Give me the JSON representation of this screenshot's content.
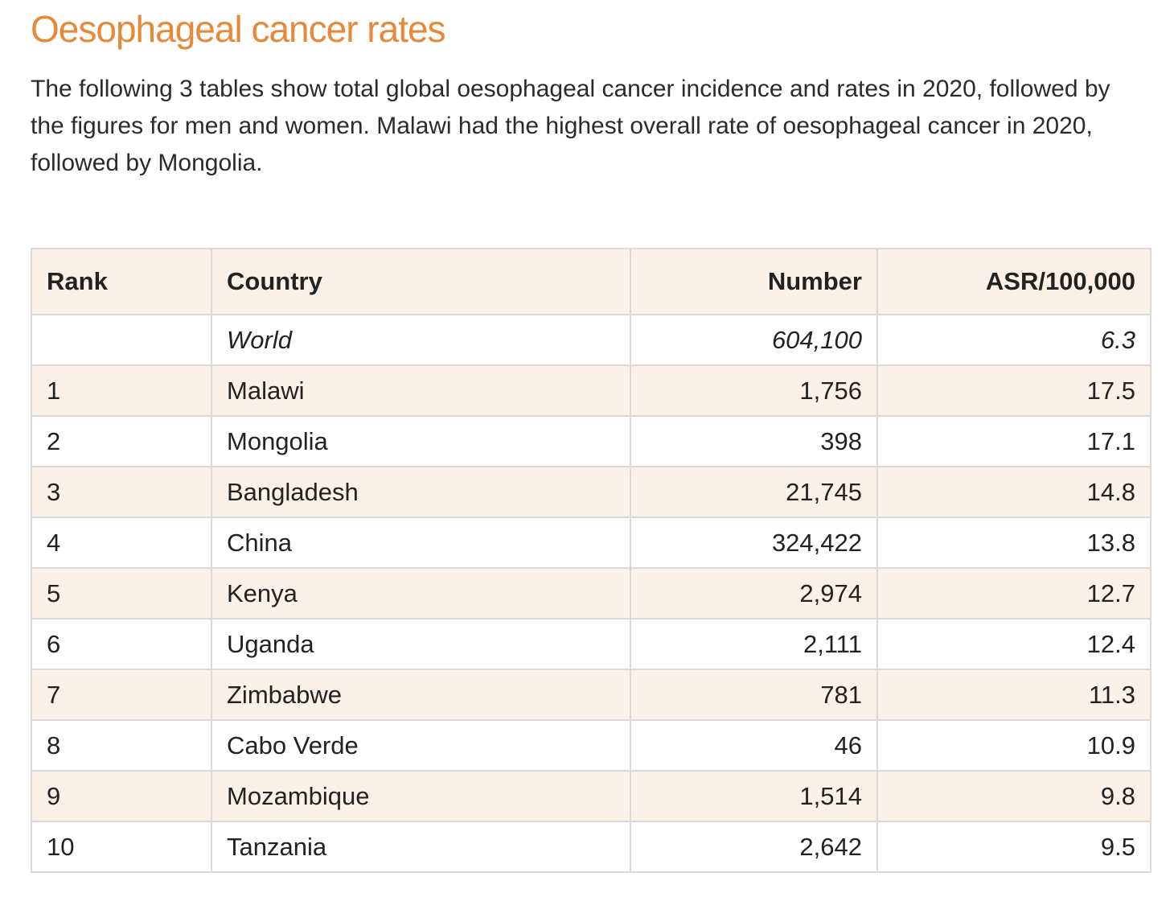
{
  "title": "Oesophageal cancer rates",
  "intro": "The following 3 tables show total global oesophageal cancer incidence and rates in 2020, followed by the figures for men and women. Malawi had the highest overall rate of oesophageal cancer in 2020, followed by Mongolia.",
  "colors": {
    "title": "#e8893a",
    "header_bg": "#fbf1e6",
    "stripe_bg": "#fbf1e6",
    "border": "#d9d9d9"
  },
  "table": {
    "headers": {
      "rank": "Rank",
      "country": "Country",
      "number": "Number",
      "asr": "ASR/100,000"
    },
    "world": {
      "rank": "",
      "country": "World",
      "number": "604,100",
      "asr": "6.3"
    },
    "rows": [
      {
        "rank": "1",
        "country": "Malawi",
        "number": "1,756",
        "asr": "17.5"
      },
      {
        "rank": "2",
        "country": "Mongolia",
        "number": "398",
        "asr": "17.1"
      },
      {
        "rank": "3",
        "country": "Bangladesh",
        "number": "21,745",
        "asr": "14.8"
      },
      {
        "rank": "4",
        "country": "China",
        "number": "324,422",
        "asr": "13.8"
      },
      {
        "rank": "5",
        "country": "Kenya",
        "number": "2,974",
        "asr": "12.7"
      },
      {
        "rank": "6",
        "country": "Uganda",
        "number": "2,111",
        "asr": "12.4"
      },
      {
        "rank": "7",
        "country": "Zimbabwe",
        "number": "781",
        "asr": "11.3"
      },
      {
        "rank": "8",
        "country": "Cabo Verde",
        "number": "46",
        "asr": "10.9"
      },
      {
        "rank": "9",
        "country": "Mozambique",
        "number": "1,514",
        "asr": "9.8"
      },
      {
        "rank": "10",
        "country": "Tanzania",
        "number": "2,642",
        "asr": "9.5"
      }
    ]
  }
}
